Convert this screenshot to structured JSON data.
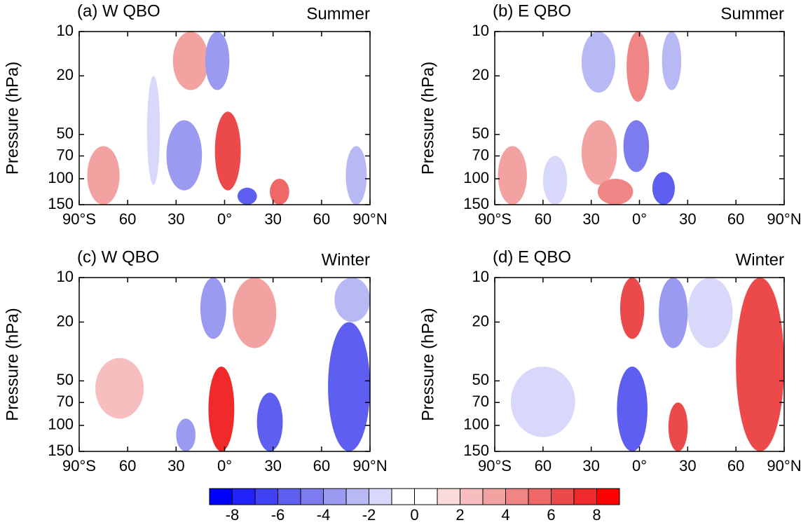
{
  "chart_data": [
    {
      "type": "contour",
      "title": "(a) W QBO",
      "season": "Summer",
      "ylabel": "Pressure (hPa)",
      "xlim": [
        -90,
        90
      ],
      "xticks": [
        {
          "value": -90,
          "label": "90°S"
        },
        {
          "value": -60,
          "label": "60"
        },
        {
          "value": -30,
          "label": "30"
        },
        {
          "value": 0,
          "label": "0°"
        },
        {
          "value": 30,
          "label": "30"
        },
        {
          "value": 60,
          "label": "60"
        },
        {
          "value": 90,
          "label": "90°N"
        }
      ],
      "ylim": [
        150,
        10
      ],
      "yticks": [
        10,
        20,
        50,
        70,
        100,
        150
      ],
      "ylog": true,
      "regions": [
        {
          "lat_range": [
            -32,
            -10
          ],
          "p_range": [
            10,
            25
          ],
          "value": 3
        },
        {
          "lat_range": [
            -12,
            3
          ],
          "p_range": [
            10,
            25
          ],
          "value": -4
        },
        {
          "lat_range": [
            -6,
            10
          ],
          "p_range": [
            35,
            120
          ],
          "value": 6
        },
        {
          "lat_range": [
            -36,
            -14
          ],
          "p_range": [
            40,
            120
          ],
          "value": -4
        },
        {
          "lat_range": [
            -48,
            -40
          ],
          "p_range": [
            20,
            110
          ],
          "value": -2
        },
        {
          "lat_range": [
            28,
            40
          ],
          "p_range": [
            100,
            150
          ],
          "value": 5
        },
        {
          "lat_range": [
            8,
            20
          ],
          "p_range": [
            115,
            150
          ],
          "value": -6
        },
        {
          "lat_range": [
            -85,
            -65
          ],
          "p_range": [
            60,
            150
          ],
          "value": 3
        },
        {
          "lat_range": [
            75,
            88
          ],
          "p_range": [
            60,
            150
          ],
          "value": -3
        }
      ]
    },
    {
      "type": "contour",
      "title": "(b) E QBO",
      "season": "Summer",
      "ylabel": "Pressure (hPa)",
      "xlim": [
        -90,
        90
      ],
      "xticks": [
        {
          "value": -90,
          "label": "90°S"
        },
        {
          "value": -60,
          "label": "60"
        },
        {
          "value": -30,
          "label": "30"
        },
        {
          "value": 0,
          "label": "0°"
        },
        {
          "value": 30,
          "label": "30"
        },
        {
          "value": 60,
          "label": "60"
        },
        {
          "value": 90,
          "label": "90°N"
        }
      ],
      "ylim": [
        150,
        10
      ],
      "yticks": [
        10,
        20,
        50,
        70,
        100,
        150
      ],
      "ylog": true,
      "regions": [
        {
          "lat_range": [
            -36,
            -15
          ],
          "p_range": [
            10,
            26
          ],
          "value": -3
        },
        {
          "lat_range": [
            -8,
            6
          ],
          "p_range": [
            10,
            30
          ],
          "value": 4
        },
        {
          "lat_range": [
            14,
            26
          ],
          "p_range": [
            10,
            25
          ],
          "value": -3
        },
        {
          "lat_range": [
            -36,
            -14
          ],
          "p_range": [
            40,
            110
          ],
          "value": 3
        },
        {
          "lat_range": [
            -10,
            6
          ],
          "p_range": [
            40,
            90
          ],
          "value": -5
        },
        {
          "lat_range": [
            8,
            22
          ],
          "p_range": [
            90,
            150
          ],
          "value": -6
        },
        {
          "lat_range": [
            -26,
            -4
          ],
          "p_range": [
            100,
            150
          ],
          "value": 4
        },
        {
          "lat_range": [
            -88,
            -70
          ],
          "p_range": [
            60,
            150
          ],
          "value": 3
        },
        {
          "lat_range": [
            -60,
            -45
          ],
          "p_range": [
            70,
            150
          ],
          "value": -2
        }
      ]
    },
    {
      "type": "contour",
      "title": "(c) W QBO",
      "season": "Winter",
      "ylabel": "Pressure (hPa)",
      "xlim": [
        -90,
        90
      ],
      "xticks": [
        {
          "value": -90,
          "label": "90°S"
        },
        {
          "value": -60,
          "label": "60"
        },
        {
          "value": -30,
          "label": "30"
        },
        {
          "value": 0,
          "label": "0°"
        },
        {
          "value": 30,
          "label": "30"
        },
        {
          "value": 60,
          "label": "60"
        },
        {
          "value": 90,
          "label": "90°N"
        }
      ],
      "ylim": [
        150,
        10
      ],
      "yticks": [
        10,
        20,
        50,
        70,
        100,
        150
      ],
      "ylog": true,
      "regions": [
        {
          "lat_range": [
            -15,
            1
          ],
          "p_range": [
            10,
            26
          ],
          "value": -4
        },
        {
          "lat_range": [
            5,
            32
          ],
          "p_range": [
            10,
            30
          ],
          "value": 3
        },
        {
          "lat_range": [
            -10,
            6
          ],
          "p_range": [
            40,
            150
          ],
          "value": 7
        },
        {
          "lat_range": [
            20,
            36
          ],
          "p_range": [
            60,
            150
          ],
          "value": -6
        },
        {
          "lat_range": [
            64,
            90
          ],
          "p_range": [
            20,
            150
          ],
          "value": -6
        },
        {
          "lat_range": [
            68,
            90
          ],
          "p_range": [
            10,
            20
          ],
          "value": -3
        },
        {
          "lat_range": [
            -30,
            -18
          ],
          "p_range": [
            90,
            150
          ],
          "value": -4
        },
        {
          "lat_range": [
            -80,
            -50
          ],
          "p_range": [
            35,
            90
          ],
          "value": 2
        }
      ]
    },
    {
      "type": "contour",
      "title": "(d) E QBO",
      "season": "Winter",
      "ylabel": "Pressure (hPa)",
      "xlim": [
        -90,
        90
      ],
      "xticks": [
        {
          "value": -90,
          "label": "90°S"
        },
        {
          "value": -60,
          "label": "60"
        },
        {
          "value": -30,
          "label": "30"
        },
        {
          "value": 0,
          "label": "0°"
        },
        {
          "value": 30,
          "label": "30"
        },
        {
          "value": 60,
          "label": "60"
        },
        {
          "value": 90,
          "label": "90°N"
        }
      ],
      "ylim": [
        150,
        10
      ],
      "yticks": [
        10,
        20,
        50,
        70,
        100,
        150
      ],
      "ylog": true,
      "regions": [
        {
          "lat_range": [
            -12,
            3
          ],
          "p_range": [
            10,
            26
          ],
          "value": 6
        },
        {
          "lat_range": [
            12,
            30
          ],
          "p_range": [
            10,
            30
          ],
          "value": -4
        },
        {
          "lat_range": [
            -14,
            5
          ],
          "p_range": [
            40,
            150
          ],
          "value": -6
        },
        {
          "lat_range": [
            18,
            30
          ],
          "p_range": [
            70,
            150
          ],
          "value": 6
        },
        {
          "lat_range": [
            60,
            90
          ],
          "p_range": [
            10,
            150
          ],
          "value": 6
        },
        {
          "lat_range": [
            30,
            58
          ],
          "p_range": [
            10,
            30
          ],
          "value": -2
        },
        {
          "lat_range": [
            -80,
            -40
          ],
          "p_range": [
            40,
            120
          ],
          "value": -2
        }
      ]
    }
  ],
  "colorbar": {
    "levels": [
      -8,
      -7,
      -6,
      -5,
      -4,
      -3,
      -2,
      -1,
      0,
      1,
      2,
      3,
      4,
      5,
      6,
      7,
      8
    ],
    "ticks": [
      -8,
      -6,
      -4,
      -2,
      0,
      2,
      4,
      6,
      8
    ],
    "colors": [
      "#0000ff",
      "#2222fb",
      "#4040f5",
      "#5e5ef0",
      "#7c7cef",
      "#9a9af1",
      "#b8b8f5",
      "#d8d8fa",
      "#ffffff",
      "#ffffff",
      "#fadada",
      "#f6bebe",
      "#f3a2a2",
      "#f08585",
      "#ee6868",
      "#ec4a4a",
      "#f02a2a",
      "#ff0000"
    ]
  }
}
